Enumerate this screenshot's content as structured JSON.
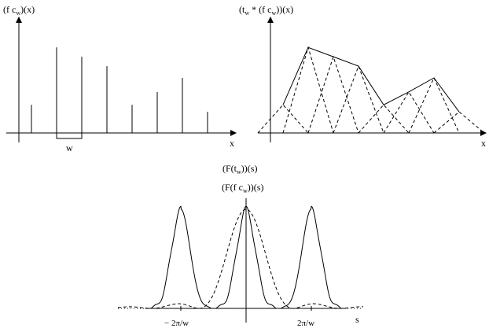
{
  "panel_left": {
    "ylabel": "(f c",
    "ylabel_sub": "w",
    "ylabel_tail": ")(x)",
    "xlabel": "x",
    "width_label": "w"
  },
  "panel_right": {
    "ylabel_a": "(t",
    "ylabel_sub1": "w",
    "ylabel_b": " * (f c",
    "ylabel_sub2": "w",
    "ylabel_c": "))(x)",
    "xlabel": "x"
  },
  "panel_bottom": {
    "title1_a": "(F(t",
    "title1_sub": "w",
    "title1_b": "))(s)",
    "title2_a": "(F(f c",
    "title2_sub": "w",
    "title2_b": "))(s)",
    "xlabel": "s",
    "tick_neg": "− 2π/w",
    "tick_pos": "2π/w"
  },
  "chart_data": [
    {
      "type": "stem",
      "samples": [
        0.24,
        0.73,
        0.65,
        0.57,
        0.24,
        0.35,
        0.47,
        0.18
      ],
      "note": "comb-sampled signal f·c_w, heights as fraction of max"
    },
    {
      "type": "line",
      "samples": [
        0.24,
        0.73,
        0.65,
        0.57,
        0.24,
        0.35,
        0.47,
        0.18
      ],
      "style": "solid interpolation with dashed triangle kernels t_w"
    },
    {
      "type": "line",
      "series": [
        "F(t_w) dashed",
        "F(f c_w) solid"
      ],
      "peaks_at": [
        "-2π/w",
        "0",
        "2π/w"
      ]
    }
  ]
}
